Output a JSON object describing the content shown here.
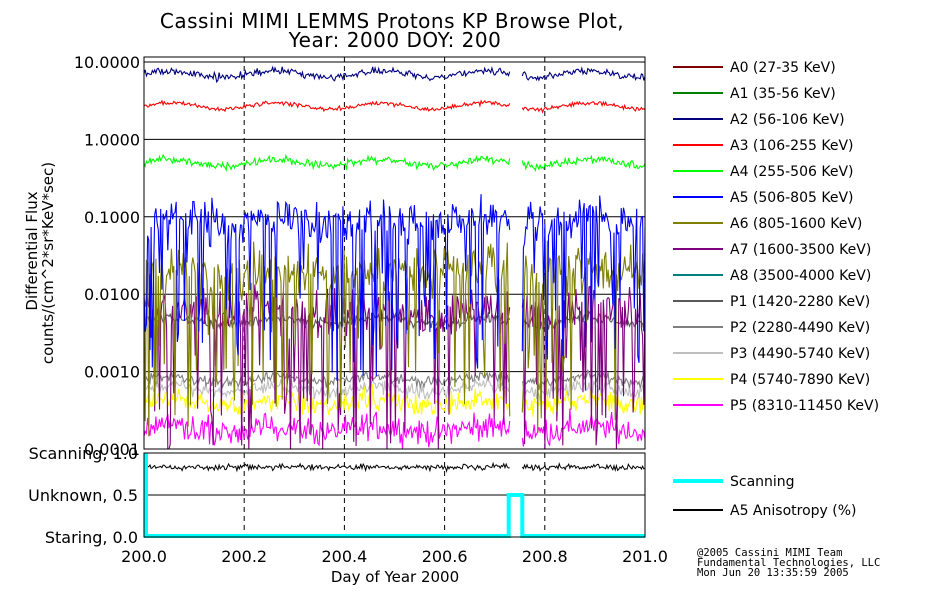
{
  "chart_data": [
    {
      "type": "line",
      "panel": "flux",
      "title": "Cassini MIMI LEMMS Protons KP Browse Plot,",
      "subtitle": "Year: 2000 DOY: 200",
      "ylabel_line1": "Differential Flux",
      "ylabel_line2": "counts/(cm^2*sr*KeV*sec)",
      "yscale": "log",
      "ylim": [
        0.0001,
        16
      ],
      "yticks": [
        {
          "value": 10,
          "label": "10.0000"
        },
        {
          "value": 1,
          "label": "1.0000"
        },
        {
          "value": 0.1,
          "label": "0.1000"
        },
        {
          "value": 0.01,
          "label": "0.0100"
        },
        {
          "value": 0.001,
          "label": "0.0010"
        },
        {
          "value": 0.0001,
          "label": "0.0001"
        }
      ],
      "data_gap": [
        200.73,
        200.755
      ],
      "series": [
        {
          "name": "A0 (27-35 KeV)",
          "color": "#7f0000",
          "level": null,
          "spread": 0
        },
        {
          "name": "A1 (35-56 KeV)",
          "color": "#008000",
          "level": null,
          "spread": 0
        },
        {
          "name": "A2 (56-106 KeV)",
          "color": "#00007f",
          "level": 7.0,
          "spread": 0.08
        },
        {
          "name": "A3 (106-255 KeV)",
          "color": "#ff0000",
          "level": 2.7,
          "spread": 0.05
        },
        {
          "name": "A4 (255-506 KeV)",
          "color": "#00ff00",
          "level": 0.5,
          "spread": 0.09
        },
        {
          "name": "A5 (506-805 KeV)",
          "color": "#0000ff",
          "level": 0.09,
          "spread": 0.45
        },
        {
          "name": "A6 (805-1600 KeV)",
          "color": "#7f7f00",
          "level": 0.02,
          "spread": 0.5
        },
        {
          "name": "A7 (1600-3500 KeV)",
          "color": "#7f007f",
          "level": 0.006,
          "spread": 0.55
        },
        {
          "name": "A8 (3500-4000 KeV)",
          "color": "#007f7f",
          "level": null,
          "spread": 0
        },
        {
          "name": "P1 (1420-2280 KeV)",
          "color": "#595959",
          "level": 0.0045,
          "spread": 0.12
        },
        {
          "name": "P2 (2280-4490 KeV)",
          "color": "#7f7f7f",
          "level": 0.0008,
          "spread": 0.12
        },
        {
          "name": "P3 (4490-5740 KeV)",
          "color": "#bfbfbf",
          "level": 0.0006,
          "spread": 0.15
        },
        {
          "name": "P4 (5740-7890 KeV)",
          "color": "#ffff00",
          "level": 0.0004,
          "spread": 0.25
        },
        {
          "name": "P5 (8310-11450 KeV)",
          "color": "#ff00ff",
          "level": 0.00018,
          "spread": 0.3
        }
      ]
    },
    {
      "type": "line",
      "panel": "mode",
      "yticks": [
        {
          "value": 1.0,
          "label": "Scanning, 1.0"
        },
        {
          "value": 0.5,
          "label": "Unknown, 0.5"
        },
        {
          "value": 0.0,
          "label": "Staring, 0.0"
        }
      ],
      "ylim": [
        0,
        1
      ],
      "xlabel": "Day of Year 2000",
      "xlim": [
        200.0,
        201.0
      ],
      "xticks": [
        {
          "value": 200.0,
          "label": "200.0"
        },
        {
          "value": 200.2,
          "label": "200.2"
        },
        {
          "value": 200.4,
          "label": "200.4"
        },
        {
          "value": 200.6,
          "label": "200.6"
        },
        {
          "value": 200.8,
          "label": "200.8"
        },
        {
          "value": 201.0,
          "label": "201.0"
        }
      ],
      "series": [
        {
          "name": "Scanning",
          "color": "#00ffff",
          "points": [
            [
              200.0,
              1.0
            ],
            [
              200.0,
              0.0
            ],
            [
              200.728,
              0.0
            ],
            [
              200.728,
              0.5
            ],
            [
              200.755,
              0.5
            ],
            [
              200.755,
              0.0
            ],
            [
              201.0,
              0.0
            ]
          ]
        },
        {
          "name": "A5 Anisotropy (%)",
          "color": "#000000",
          "level": 0.83,
          "spread": 0.06
        }
      ]
    }
  ],
  "credits": {
    "line1": "@2005 Cassini MIMI Team",
    "line2": "Fundamental Technologies, LLC",
    "line3": "Mon Jun 20 13:35:59 2005"
  }
}
